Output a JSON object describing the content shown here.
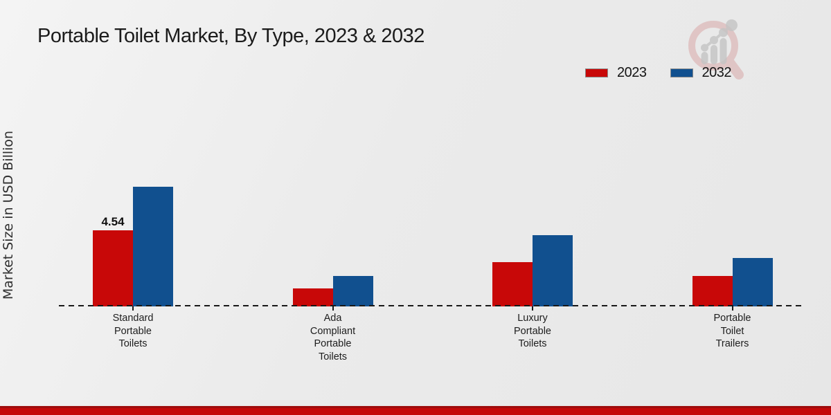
{
  "title": "Portable Toilet Market, By Type, 2023 & 2032",
  "ylabel": "Market Size in USD Billion",
  "colors": {
    "series_2023": "#c80808",
    "series_2032": "#11508f",
    "footer_stripe": "#c40808",
    "footer_stripe_edge": "#9e0d0d",
    "background": "#ececec",
    "baseline": "#171717",
    "logo_ring": "#dbaaaa",
    "logo_gray": "#c4c4c4"
  },
  "logo": {
    "name": "magnifier-growth-chart-watermark"
  },
  "chart_data": {
    "type": "bar",
    "title": "Portable Toilet Market, By Type, 2023 & 2032",
    "xlabel": "",
    "ylabel": "Market Size in USD Billion",
    "ylim": [
      0,
      7.5
    ],
    "grid": false,
    "baseline_style": "dashed",
    "legend_position": "top-right",
    "categories": [
      "Standard Portable Toilets",
      "Ada Compliant Portable Toilets",
      "Luxury Portable Toilets",
      "Portable Toilet Trailers"
    ],
    "categories_wrapped": [
      [
        "Standard",
        "Portable",
        "Toilets"
      ],
      [
        "Ada",
        "Compliant",
        "Portable",
        "Toilets"
      ],
      [
        "Luxury",
        "Portable",
        "Toilets"
      ],
      [
        "Portable",
        "Toilet",
        "Trailers"
      ]
    ],
    "series": [
      {
        "name": "2023",
        "color": "#c80808",
        "values": [
          4.54,
          1.09,
          2.65,
          1.81
        ]
      },
      {
        "name": "2032",
        "color": "#11508f",
        "values": [
          7.15,
          1.82,
          4.27,
          2.9
        ]
      }
    ],
    "data_labels": [
      {
        "series_index": 0,
        "category_index": 0,
        "text": "4.54"
      }
    ]
  }
}
